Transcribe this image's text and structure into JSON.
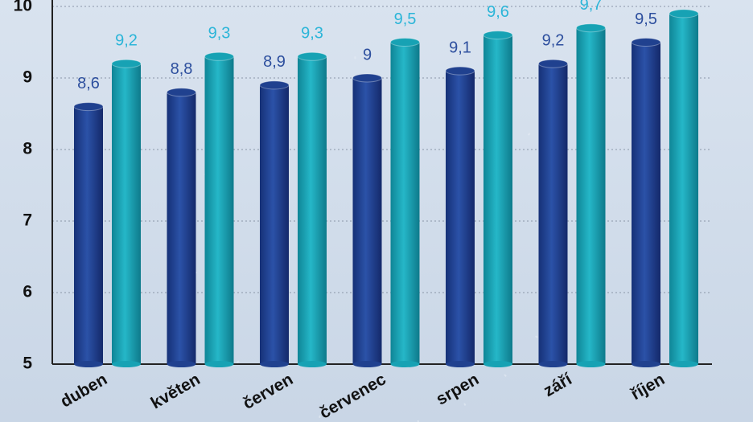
{
  "chart_data": {
    "type": "bar",
    "categories": [
      "duben",
      "květen",
      "červen",
      "červenec",
      "srpen",
      "září",
      "říjen"
    ],
    "series": [
      {
        "color": "#20418f",
        "label_color": "#2d4f9e",
        "values": [
          8.6,
          8.8,
          8.9,
          9,
          9.1,
          9.2,
          9.5
        ],
        "value_labels": [
          "8,6",
          "8,8",
          "8,9",
          "9",
          "9,1",
          "9,2",
          "9,5"
        ]
      },
      {
        "color": "#17a2b4",
        "label_color": "#2bb5d8",
        "values": [
          9.2,
          9.3,
          9.3,
          9.5,
          9.6,
          9.7,
          9.9
        ],
        "value_labels": [
          "9,2",
          "9,3",
          "9,3",
          "9,5",
          "9,6",
          "9,7",
          null
        ]
      }
    ],
    "ylim": [
      5,
      10
    ],
    "yticks": [
      5,
      6,
      7,
      8,
      9,
      10
    ],
    "grid": true
  }
}
